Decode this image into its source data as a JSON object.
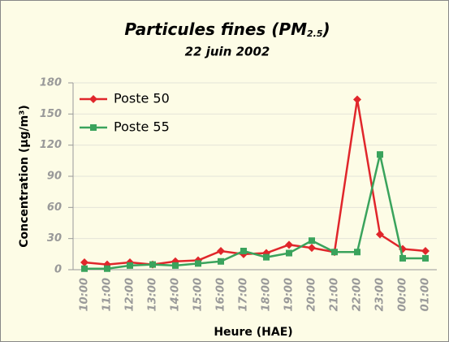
{
  "chart_data": {
    "type": "line",
    "title": "Particules fines (PM",
    "title_subscript": "2.5",
    "title_end": ")",
    "subtitle": "22 juin 2002",
    "x_label": "Heure (HAE)",
    "y_label": "Concentration (µg/m³)",
    "categories": [
      "10:00",
      "11:00",
      "12:00",
      "13:00",
      "14:00",
      "15:00",
      "16:00",
      "17:00",
      "18:00",
      "19:00",
      "20:00",
      "21:00",
      "22:00",
      "23:00",
      "00:00",
      "01:00"
    ],
    "series": [
      {
        "name": "Poste 50",
        "color": "#e0262b",
        "marker": "diamond",
        "values": [
          7,
          5,
          7,
          5,
          8,
          9,
          18,
          15,
          16,
          24,
          21,
          17,
          164,
          34,
          20,
          18
        ]
      },
      {
        "name": "Poste 55",
        "color": "#3aa35c",
        "marker": "square",
        "values": [
          1,
          1,
          4,
          5,
          4,
          6,
          8,
          18,
          12,
          16,
          28,
          17,
          17,
          111,
          11,
          11
        ]
      }
    ],
    "ylim": [
      0,
      180
    ],
    "yticks": [
      0,
      30,
      60,
      90,
      120,
      150,
      180
    ],
    "grid": true,
    "legend": "top-left"
  }
}
